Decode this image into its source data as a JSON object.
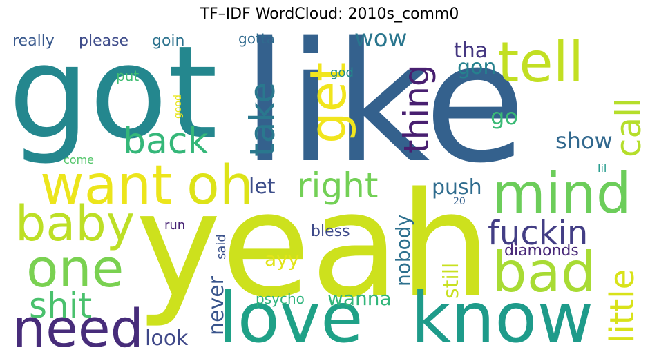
{
  "chart_data": {
    "type": "wordcloud",
    "title": "TF–IDF WordCloud: 2010s_comm0",
    "background": "#ffffff",
    "words": [
      {
        "text": "like",
        "color": "#34618d"
      },
      {
        "text": "yeah",
        "color": "#cde11d"
      },
      {
        "text": "got",
        "color": "#24878e"
      },
      {
        "text": "love",
        "color": "#1fa187"
      },
      {
        "text": "know",
        "color": "#1e9b8a"
      },
      {
        "text": "tell",
        "color": "#c2df23"
      },
      {
        "text": "get",
        "color": "#f1e51d"
      },
      {
        "text": "want",
        "color": "#ece51b"
      },
      {
        "text": "oh",
        "color": "#dde318"
      },
      {
        "text": "mind",
        "color": "#6ccd5a"
      },
      {
        "text": "bad",
        "color": "#a8db34"
      },
      {
        "text": "need",
        "color": "#472c7a"
      },
      {
        "text": "one",
        "color": "#7ad151"
      },
      {
        "text": "baby",
        "color": "#bddf26"
      },
      {
        "text": "shit",
        "color": "#4ac16d"
      },
      {
        "text": "fuckin",
        "color": "#433e85"
      },
      {
        "text": "back",
        "color": "#35b779"
      },
      {
        "text": "right",
        "color": "#73d056"
      },
      {
        "text": "take",
        "color": "#2a788e"
      },
      {
        "text": "thing",
        "color": "#481f70"
      },
      {
        "text": "call",
        "color": "#b5de2b"
      },
      {
        "text": "little",
        "color": "#d8e219"
      },
      {
        "text": "wow",
        "color": "#2a768e"
      },
      {
        "text": "tha",
        "color": "#453781"
      },
      {
        "text": "gon",
        "color": "#26818e"
      },
      {
        "text": "go",
        "color": "#3aba76"
      },
      {
        "text": "show",
        "color": "#31688e"
      },
      {
        "text": "push",
        "color": "#2f6c8e"
      },
      {
        "text": "let",
        "color": "#3d4e8a"
      },
      {
        "text": "nobody",
        "color": "#2d708e"
      },
      {
        "text": "still",
        "color": "#c8e020"
      },
      {
        "text": "never",
        "color": "#39558c"
      },
      {
        "text": "wanna",
        "color": "#32b67a"
      },
      {
        "text": "ayy",
        "color": "#e2e418"
      },
      {
        "text": "look",
        "color": "#3f4889"
      },
      {
        "text": "psycho",
        "color": "#2eb37c"
      },
      {
        "text": "bless",
        "color": "#3e4a89"
      },
      {
        "text": "diamonds",
        "color": "#482878"
      },
      {
        "text": "run",
        "color": "#482475"
      },
      {
        "text": "said",
        "color": "#3b528b"
      },
      {
        "text": "really",
        "color": "#38588c"
      },
      {
        "text": "please",
        "color": "#3e4c8a"
      },
      {
        "text": "goin",
        "color": "#2c728e"
      },
      {
        "text": "gotta",
        "color": "#306a8e"
      },
      {
        "text": "put",
        "color": "#40bd72"
      },
      {
        "text": "god",
        "color": "#228d8d"
      },
      {
        "text": "good",
        "color": "#e7e419"
      },
      {
        "text": "come",
        "color": "#52c569"
      },
      {
        "text": "lil",
        "color": "#1f998a"
      },
      {
        "text": "20",
        "color": "#34608d"
      }
    ]
  }
}
